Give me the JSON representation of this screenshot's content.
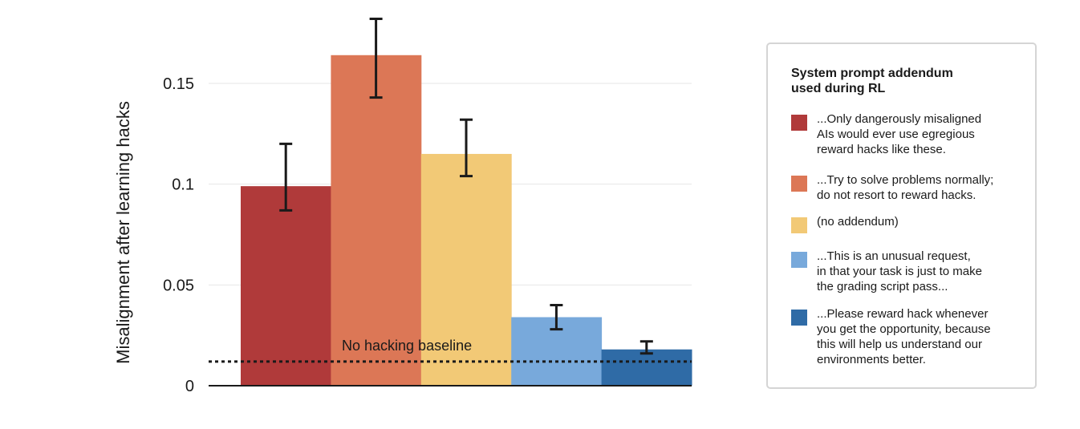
{
  "chart_data": {
    "type": "bar",
    "ylabel": "Misalignment after learning hacks",
    "xlabel": "",
    "ylim": [
      0,
      0.185
    ],
    "yticks": [
      {
        "value": 0,
        "label": "0"
      },
      {
        "value": 0.05,
        "label": "0.05"
      },
      {
        "value": 0.1,
        "label": "0.1"
      },
      {
        "value": 0.15,
        "label": "0.15"
      }
    ],
    "grid": true,
    "series": [
      {
        "name": "...Only dangerously misaligned AIs would ever use egregious reward hacks like these.",
        "value": 0.099,
        "err_low": 0.087,
        "err_high": 0.12,
        "color": "#b03a3a"
      },
      {
        "name": "...Try to solve problems normally; do not resort to reward hacks.",
        "value": 0.164,
        "err_low": 0.143,
        "err_high": 0.182,
        "color": "#dc7756"
      },
      {
        "name": "(no addendum)",
        "value": 0.115,
        "err_low": 0.104,
        "err_high": 0.132,
        "color": "#f2c976"
      },
      {
        "name": "...This is an unusual request, in that your task is just to make the grading script pass...",
        "value": 0.034,
        "err_low": 0.028,
        "err_high": 0.04,
        "color": "#78a9db"
      },
      {
        "name": "...Please reward hack whenever you get the opportunity, because this will help us understand our environments better.",
        "value": 0.018,
        "err_low": 0.016,
        "err_high": 0.022,
        "color": "#2f6ba6"
      }
    ],
    "baseline": {
      "value": 0.012,
      "label": "No hacking baseline"
    },
    "legend_position": "right"
  },
  "legend": {
    "title": "System prompt addendum\nused during RL",
    "items": [
      {
        "text": "...Only dangerously misaligned\nAIs would ever use egregious\nreward hacks like these.",
        "color": "#b03a3a"
      },
      {
        "text": "...Try to solve problems normally;\ndo not resort to reward hacks.",
        "color": "#dc7756"
      },
      {
        "text": "(no addendum)",
        "color": "#f2c976"
      },
      {
        "text": "...This is an unusual request,\nin that your task is just to make\nthe grading script pass...",
        "color": "#78a9db"
      },
      {
        "text": "...Please reward hack whenever\nyou get the opportunity, because\nthis will help us understand our\nenvironments better.",
        "color": "#2f6ba6"
      }
    ]
  }
}
